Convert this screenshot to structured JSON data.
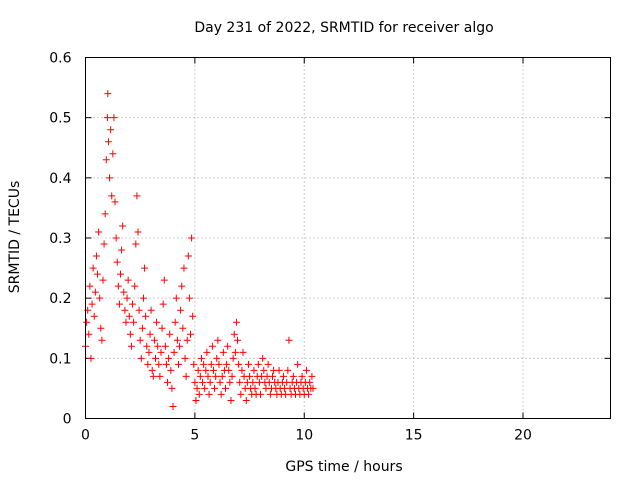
{
  "chart_data": {
    "type": "scatter",
    "title": "Day 231 of 2022, SRMTID for receiver algo",
    "xlabel": "GPS time / hours",
    "ylabel": "SRMTID / TECUs",
    "xlim": [
      0,
      24
    ],
    "ylim": [
      0,
      0.6
    ],
    "x_ticks": [
      0,
      5,
      10,
      15,
      20
    ],
    "y_ticks": [
      0,
      0.1,
      0.2,
      0.3,
      0.4,
      0.5,
      0.6
    ],
    "x_tick_labels": [
      "0",
      "5",
      "10",
      "15",
      "20"
    ],
    "y_tick_labels": [
      "0",
      "0.1",
      "0.2",
      "0.3",
      "0.4",
      "0.5",
      "0.6"
    ],
    "grid": true,
    "marker": "+",
    "color": "#ff0000",
    "series": [
      {
        "name": "SRMTID",
        "points": [
          [
            0.0,
            0.12
          ],
          [
            0.05,
            0.16
          ],
          [
            0.1,
            0.18
          ],
          [
            0.15,
            0.14
          ],
          [
            0.2,
            0.22
          ],
          [
            0.25,
            0.1
          ],
          [
            0.3,
            0.19
          ],
          [
            0.35,
            0.25
          ],
          [
            0.4,
            0.17
          ],
          [
            0.45,
            0.21
          ],
          [
            0.5,
            0.27
          ],
          [
            0.55,
            0.24
          ],
          [
            0.6,
            0.31
          ],
          [
            0.65,
            0.2
          ],
          [
            0.7,
            0.15
          ],
          [
            0.75,
            0.13
          ],
          [
            0.8,
            0.23
          ],
          [
            0.85,
            0.29
          ],
          [
            0.9,
            0.34
          ],
          [
            0.95,
            0.43
          ],
          [
            1.0,
            0.5
          ],
          [
            1.02,
            0.54
          ],
          [
            1.05,
            0.46
          ],
          [
            1.1,
            0.4
          ],
          [
            1.15,
            0.48
          ],
          [
            1.2,
            0.37
          ],
          [
            1.25,
            0.44
          ],
          [
            1.3,
            0.5
          ],
          [
            1.35,
            0.36
          ],
          [
            1.4,
            0.3
          ],
          [
            1.45,
            0.26
          ],
          [
            1.5,
            0.22
          ],
          [
            1.55,
            0.19
          ],
          [
            1.6,
            0.24
          ],
          [
            1.65,
            0.28
          ],
          [
            1.7,
            0.32
          ],
          [
            1.75,
            0.21
          ],
          [
            1.8,
            0.18
          ],
          [
            1.85,
            0.16
          ],
          [
            1.9,
            0.2
          ],
          [
            1.95,
            0.23
          ],
          [
            2.0,
            0.17
          ],
          [
            2.05,
            0.14
          ],
          [
            2.1,
            0.12
          ],
          [
            2.15,
            0.19
          ],
          [
            2.2,
            0.16
          ],
          [
            2.25,
            0.22
          ],
          [
            2.3,
            0.29
          ],
          [
            2.35,
            0.37
          ],
          [
            2.4,
            0.31
          ],
          [
            2.45,
            0.18
          ],
          [
            2.5,
            0.13
          ],
          [
            2.55,
            0.1
          ],
          [
            2.6,
            0.15
          ],
          [
            2.65,
            0.2
          ],
          [
            2.7,
            0.25
          ],
          [
            2.75,
            0.17
          ],
          [
            2.8,
            0.12
          ],
          [
            2.85,
            0.09
          ],
          [
            2.9,
            0.11
          ],
          [
            2.95,
            0.14
          ],
          [
            3.0,
            0.18
          ],
          [
            3.05,
            0.08
          ],
          [
            3.1,
            0.07
          ],
          [
            3.15,
            0.13
          ],
          [
            3.2,
            0.1
          ],
          [
            3.25,
            0.16
          ],
          [
            3.3,
            0.12
          ],
          [
            3.35,
            0.09
          ],
          [
            3.4,
            0.07
          ],
          [
            3.45,
            0.11
          ],
          [
            3.5,
            0.15
          ],
          [
            3.55,
            0.19
          ],
          [
            3.6,
            0.23
          ],
          [
            3.65,
            0.12
          ],
          [
            3.7,
            0.09
          ],
          [
            3.75,
            0.06
          ],
          [
            3.8,
            0.1
          ],
          [
            3.85,
            0.14
          ],
          [
            3.9,
            0.08
          ],
          [
            3.95,
            0.05
          ],
          [
            4.0,
            0.02
          ],
          [
            4.05,
            0.11
          ],
          [
            4.1,
            0.16
          ],
          [
            4.15,
            0.2
          ],
          [
            4.2,
            0.13
          ],
          [
            4.25,
            0.09
          ],
          [
            4.3,
            0.12
          ],
          [
            4.35,
            0.18
          ],
          [
            4.4,
            0.22
          ],
          [
            4.45,
            0.15
          ],
          [
            4.5,
            0.25
          ],
          [
            4.55,
            0.1
          ],
          [
            4.6,
            0.07
          ],
          [
            4.65,
            0.13
          ],
          [
            4.7,
            0.27
          ],
          [
            4.75,
            0.2
          ],
          [
            4.8,
            0.14
          ],
          [
            4.85,
            0.3
          ],
          [
            4.9,
            0.17
          ],
          [
            4.95,
            0.09
          ],
          [
            5.0,
            0.06
          ],
          [
            5.05,
            0.03
          ],
          [
            5.1,
            0.05
          ],
          [
            5.15,
            0.08
          ],
          [
            5.2,
            0.04
          ],
          [
            5.25,
            0.07
          ],
          [
            5.3,
            0.1
          ],
          [
            5.35,
            0.06
          ],
          [
            5.4,
            0.09
          ],
          [
            5.45,
            0.05
          ],
          [
            5.5,
            0.08
          ],
          [
            5.55,
            0.11
          ],
          [
            5.6,
            0.07
          ],
          [
            5.65,
            0.04
          ],
          [
            5.7,
            0.06
          ],
          [
            5.75,
            0.09
          ],
          [
            5.8,
            0.12
          ],
          [
            5.85,
            0.08
          ],
          [
            5.9,
            0.05
          ],
          [
            5.95,
            0.07
          ],
          [
            6.0,
            0.1
          ],
          [
            6.05,
            0.13
          ],
          [
            6.1,
            0.09
          ],
          [
            6.15,
            0.06
          ],
          [
            6.2,
            0.04
          ],
          [
            6.25,
            0.07
          ],
          [
            6.3,
            0.11
          ],
          [
            6.35,
            0.08
          ],
          [
            6.4,
            0.05
          ],
          [
            6.45,
            0.09
          ],
          [
            6.5,
            0.12
          ],
          [
            6.55,
            0.08
          ],
          [
            6.6,
            0.06
          ],
          [
            6.65,
            0.03
          ],
          [
            6.7,
            0.07
          ],
          [
            6.75,
            0.1
          ],
          [
            6.8,
            0.14
          ],
          [
            6.85,
            0.11
          ],
          [
            6.9,
            0.16
          ],
          [
            6.95,
            0.13
          ],
          [
            7.0,
            0.09
          ],
          [
            7.05,
            0.06
          ],
          [
            7.1,
            0.04
          ],
          [
            7.15,
            0.08
          ],
          [
            7.2,
            0.11
          ],
          [
            7.25,
            0.07
          ],
          [
            7.3,
            0.05
          ],
          [
            7.35,
            0.03
          ],
          [
            7.4,
            0.06
          ],
          [
            7.45,
            0.09
          ],
          [
            7.5,
            0.07
          ],
          [
            7.55,
            0.05
          ],
          [
            7.6,
            0.04
          ],
          [
            7.65,
            0.06
          ],
          [
            7.7,
            0.08
          ],
          [
            7.75,
            0.05
          ],
          [
            7.8,
            0.04
          ],
          [
            7.85,
            0.07
          ],
          [
            7.9,
            0.09
          ],
          [
            7.95,
            0.06
          ],
          [
            8.0,
            0.04
          ],
          [
            8.05,
            0.07
          ],
          [
            8.1,
            0.1
          ],
          [
            8.15,
            0.08
          ],
          [
            8.2,
            0.06
          ],
          [
            8.25,
            0.05
          ],
          [
            8.3,
            0.07
          ],
          [
            8.35,
            0.09
          ],
          [
            8.4,
            0.06
          ],
          [
            8.45,
            0.04
          ],
          [
            8.5,
            0.05
          ],
          [
            8.55,
            0.07
          ],
          [
            8.6,
            0.08
          ],
          [
            8.65,
            0.06
          ],
          [
            8.7,
            0.05
          ],
          [
            8.75,
            0.04
          ],
          [
            8.8,
            0.06
          ],
          [
            8.85,
            0.08
          ],
          [
            8.9,
            0.05
          ],
          [
            8.95,
            0.04
          ],
          [
            9.0,
            0.06
          ],
          [
            9.05,
            0.07
          ],
          [
            9.1,
            0.05
          ],
          [
            9.15,
            0.04
          ],
          [
            9.2,
            0.06
          ],
          [
            9.25,
            0.08
          ],
          [
            9.3,
            0.13
          ],
          [
            9.35,
            0.05
          ],
          [
            9.4,
            0.04
          ],
          [
            9.45,
            0.06
          ],
          [
            9.5,
            0.07
          ],
          [
            9.55,
            0.05
          ],
          [
            9.6,
            0.04
          ],
          [
            9.65,
            0.06
          ],
          [
            9.7,
            0.09
          ],
          [
            9.75,
            0.05
          ],
          [
            9.8,
            0.04
          ],
          [
            9.85,
            0.06
          ],
          [
            9.9,
            0.07
          ],
          [
            9.95,
            0.05
          ],
          [
            10.0,
            0.04
          ],
          [
            10.05,
            0.06
          ],
          [
            10.1,
            0.08
          ],
          [
            10.15,
            0.05
          ],
          [
            10.2,
            0.04
          ],
          [
            10.25,
            0.06
          ],
          [
            10.3,
            0.05
          ],
          [
            10.35,
            0.07
          ],
          [
            10.4,
            0.05
          ]
        ]
      }
    ]
  }
}
